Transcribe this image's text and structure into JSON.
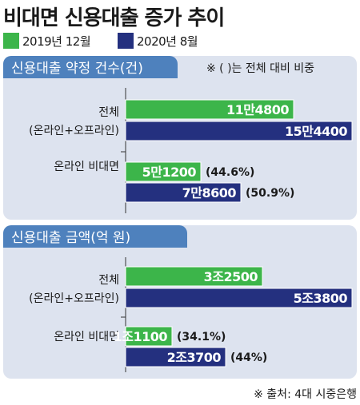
{
  "title": "비대면 신용대출 증가 추이",
  "legend": [
    {
      "label": "2019년 12월",
      "color": "#3cb54a"
    },
    {
      "label": "2020년 8월",
      "color": "#24307f"
    }
  ],
  "colors": {
    "panel_bg": "#dde3ef",
    "panel_title_bg": "#4e81bd",
    "bar_border": "#ffffff"
  },
  "note": "※ (  )는 전체 대비 비중",
  "source": "※ 출처: 4대 시중은행",
  "chart_data": [
    {
      "type": "bar",
      "orientation": "horizontal",
      "title": "신용대출 약정 건수(건)",
      "categories": [
        {
          "line1": "전체",
          "line2": "(온라인+오프라인)"
        },
        {
          "line1": "온라인 비대면",
          "line2": ""
        }
      ],
      "series": [
        {
          "name": "2019년 12월",
          "values": [
            114800,
            51200
          ],
          "labels": [
            "11만4800",
            "5만1200"
          ],
          "shares": [
            "",
            "(44.6%)"
          ]
        },
        {
          "name": "2020년 8월",
          "values": [
            154400,
            78600
          ],
          "labels": [
            "15만4400",
            "7만8600"
          ],
          "shares": [
            "",
            "(50.9%)"
          ]
        }
      ],
      "xlim": [
        0,
        154400
      ]
    },
    {
      "type": "bar",
      "orientation": "horizontal",
      "title": "신용대출 금액(억 원)",
      "categories": [
        {
          "line1": "전체",
          "line2": "(온라인+오프라인)"
        },
        {
          "line1": "온라인 비대면",
          "line2": ""
        }
      ],
      "series": [
        {
          "name": "2019년 12월",
          "values": [
            32500,
            11100
          ],
          "labels": [
            "3조2500",
            "1조1100"
          ],
          "shares": [
            "",
            "(34.1%)"
          ]
        },
        {
          "name": "2020년 8월",
          "values": [
            53800,
            23700
          ],
          "labels": [
            "5조3800",
            "2조3700"
          ],
          "shares": [
            "",
            "(44%)"
          ]
        }
      ],
      "xlim": [
        0,
        53800
      ]
    }
  ]
}
